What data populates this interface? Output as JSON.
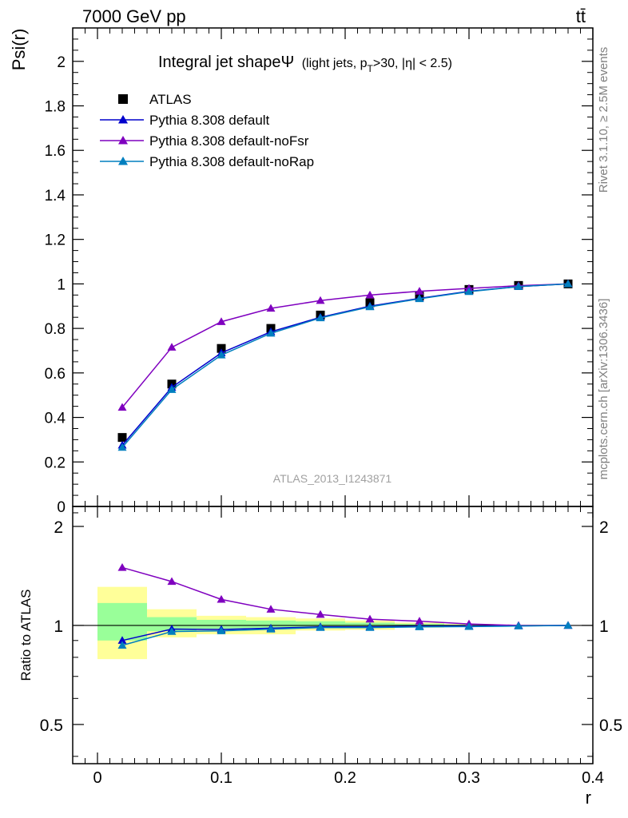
{
  "header": {
    "left": "7000 GeV pp",
    "right": "tt̄"
  },
  "side_labels": {
    "rivet": "Rivet 3.1.10, ≥ 2.5M events",
    "mcplots": "mcplots.cern.ch [arXiv:1306.3436]"
  },
  "watermark": "ATLAS_2013_I1243871",
  "chart_data": [
    {
      "type": "line",
      "title": "Integral jet shapeΨ",
      "subtitle_parts": [
        "(light jets, p",
        "T",
        ">30, |η| < 2.5)"
      ],
      "ylabel": "Psi(r)",
      "xlabel": "",
      "xlim": [
        -0.02,
        0.4
      ],
      "ylim": [
        0,
        2.15
      ],
      "x_ticks": [
        0,
        0.1,
        0.2,
        0.3,
        0.4
      ],
      "y_ticks": [
        0,
        0.2,
        0.4,
        0.6,
        0.8,
        1,
        1.2,
        1.4,
        1.6,
        1.8,
        2
      ],
      "y_tick_labels": [
        "0",
        "0.2",
        "0.4",
        "0.6",
        "0.8",
        "1",
        "1.2",
        "1.4",
        "1.6",
        "1.8",
        "2"
      ],
      "x": [
        0.02,
        0.06,
        0.1,
        0.14,
        0.18,
        0.22,
        0.26,
        0.3,
        0.34,
        0.38
      ],
      "legend_placement": "top-left",
      "series": [
        {
          "name": "ATLAS",
          "marker": "square",
          "color": "#000000",
          "values": [
            0.31,
            0.55,
            0.71,
            0.8,
            0.86,
            0.915,
            0.945,
            0.975,
            0.993,
            1.0
          ]
        },
        {
          "name": "Pythia 8.308 default",
          "marker": "triangle",
          "color": "#0000cc",
          "values": [
            0.275,
            0.535,
            0.69,
            0.785,
            0.85,
            0.9,
            0.935,
            0.967,
            0.988,
            1.0
          ]
        },
        {
          "name": "Pythia 8.308 default-noFsr",
          "marker": "triangle",
          "color": "#7f00bf",
          "values": [
            0.445,
            0.715,
            0.83,
            0.89,
            0.925,
            0.95,
            0.967,
            0.98,
            0.992,
            1.0
          ]
        },
        {
          "name": "Pythia 8.308 default-noRap",
          "marker": "triangle",
          "color": "#007fbf",
          "values": [
            0.265,
            0.525,
            0.68,
            0.778,
            0.847,
            0.897,
            0.933,
            0.965,
            0.988,
            1.0
          ]
        }
      ]
    },
    {
      "type": "line",
      "title": "",
      "ylabel": "Ratio to ATLAS",
      "xlabel": "r",
      "xlim": [
        -0.02,
        0.4
      ],
      "ylim": [
        0.38,
        2.3
      ],
      "x_ticks": [
        0,
        0.1,
        0.2,
        0.3,
        0.4
      ],
      "x_tick_labels": [
        "0",
        "0.1",
        "0.2",
        "0.3",
        "0.4"
      ],
      "y_ticks": [
        0.5,
        1,
        2
      ],
      "y_tick_labels": [
        "0.5",
        "1",
        "2"
      ],
      "x": [
        0.02,
        0.06,
        0.1,
        0.14,
        0.18,
        0.22,
        0.26,
        0.3,
        0.34,
        0.38
      ],
      "uncertainty_bands": {
        "bin_edges": [
          0,
          0.04,
          0.08,
          0.12,
          0.16,
          0.2,
          0.24,
          0.28,
          0.32,
          0.36,
          0.4
        ],
        "outer_color": "#ffff99",
        "inner_color": "#99ff99",
        "outer": [
          [
            0.79,
            1.31
          ],
          [
            0.92,
            1.12
          ],
          [
            0.94,
            1.07
          ],
          [
            0.94,
            1.06
          ],
          [
            0.965,
            1.05
          ],
          [
            0.97,
            1.035
          ],
          [
            0.985,
            1.02
          ],
          [
            0.99,
            1.01
          ],
          [
            0.995,
            1.005
          ],
          [
            0.998,
            1.002
          ]
        ],
        "inner": [
          [
            0.9,
            1.17
          ],
          [
            0.96,
            1.06
          ],
          [
            0.975,
            1.04
          ],
          [
            0.975,
            1.035
          ],
          [
            0.985,
            1.03
          ],
          [
            0.985,
            1.02
          ],
          [
            0.992,
            1.012
          ],
          [
            0.995,
            1.006
          ],
          [
            0.998,
            1.003
          ],
          [
            0.999,
            1.001
          ]
        ]
      },
      "series": [
        {
          "name": "Pythia 8.308 default",
          "marker": "triangle",
          "color": "#0000cc",
          "values": [
            0.9,
            0.975,
            0.972,
            0.981,
            0.99,
            0.99,
            0.994,
            0.995,
            0.997,
            1.0
          ]
        },
        {
          "name": "Pythia 8.308 default-noFsr",
          "marker": "triangle",
          "color": "#7f00bf",
          "values": [
            1.5,
            1.36,
            1.2,
            1.12,
            1.08,
            1.045,
            1.03,
            1.01,
            1.0,
            1.0
          ]
        },
        {
          "name": "Pythia 8.308 default-noRap",
          "marker": "triangle",
          "color": "#007fbf",
          "values": [
            0.87,
            0.958,
            0.963,
            0.974,
            0.985,
            0.985,
            0.99,
            0.992,
            0.996,
            1.0
          ]
        }
      ]
    }
  ]
}
